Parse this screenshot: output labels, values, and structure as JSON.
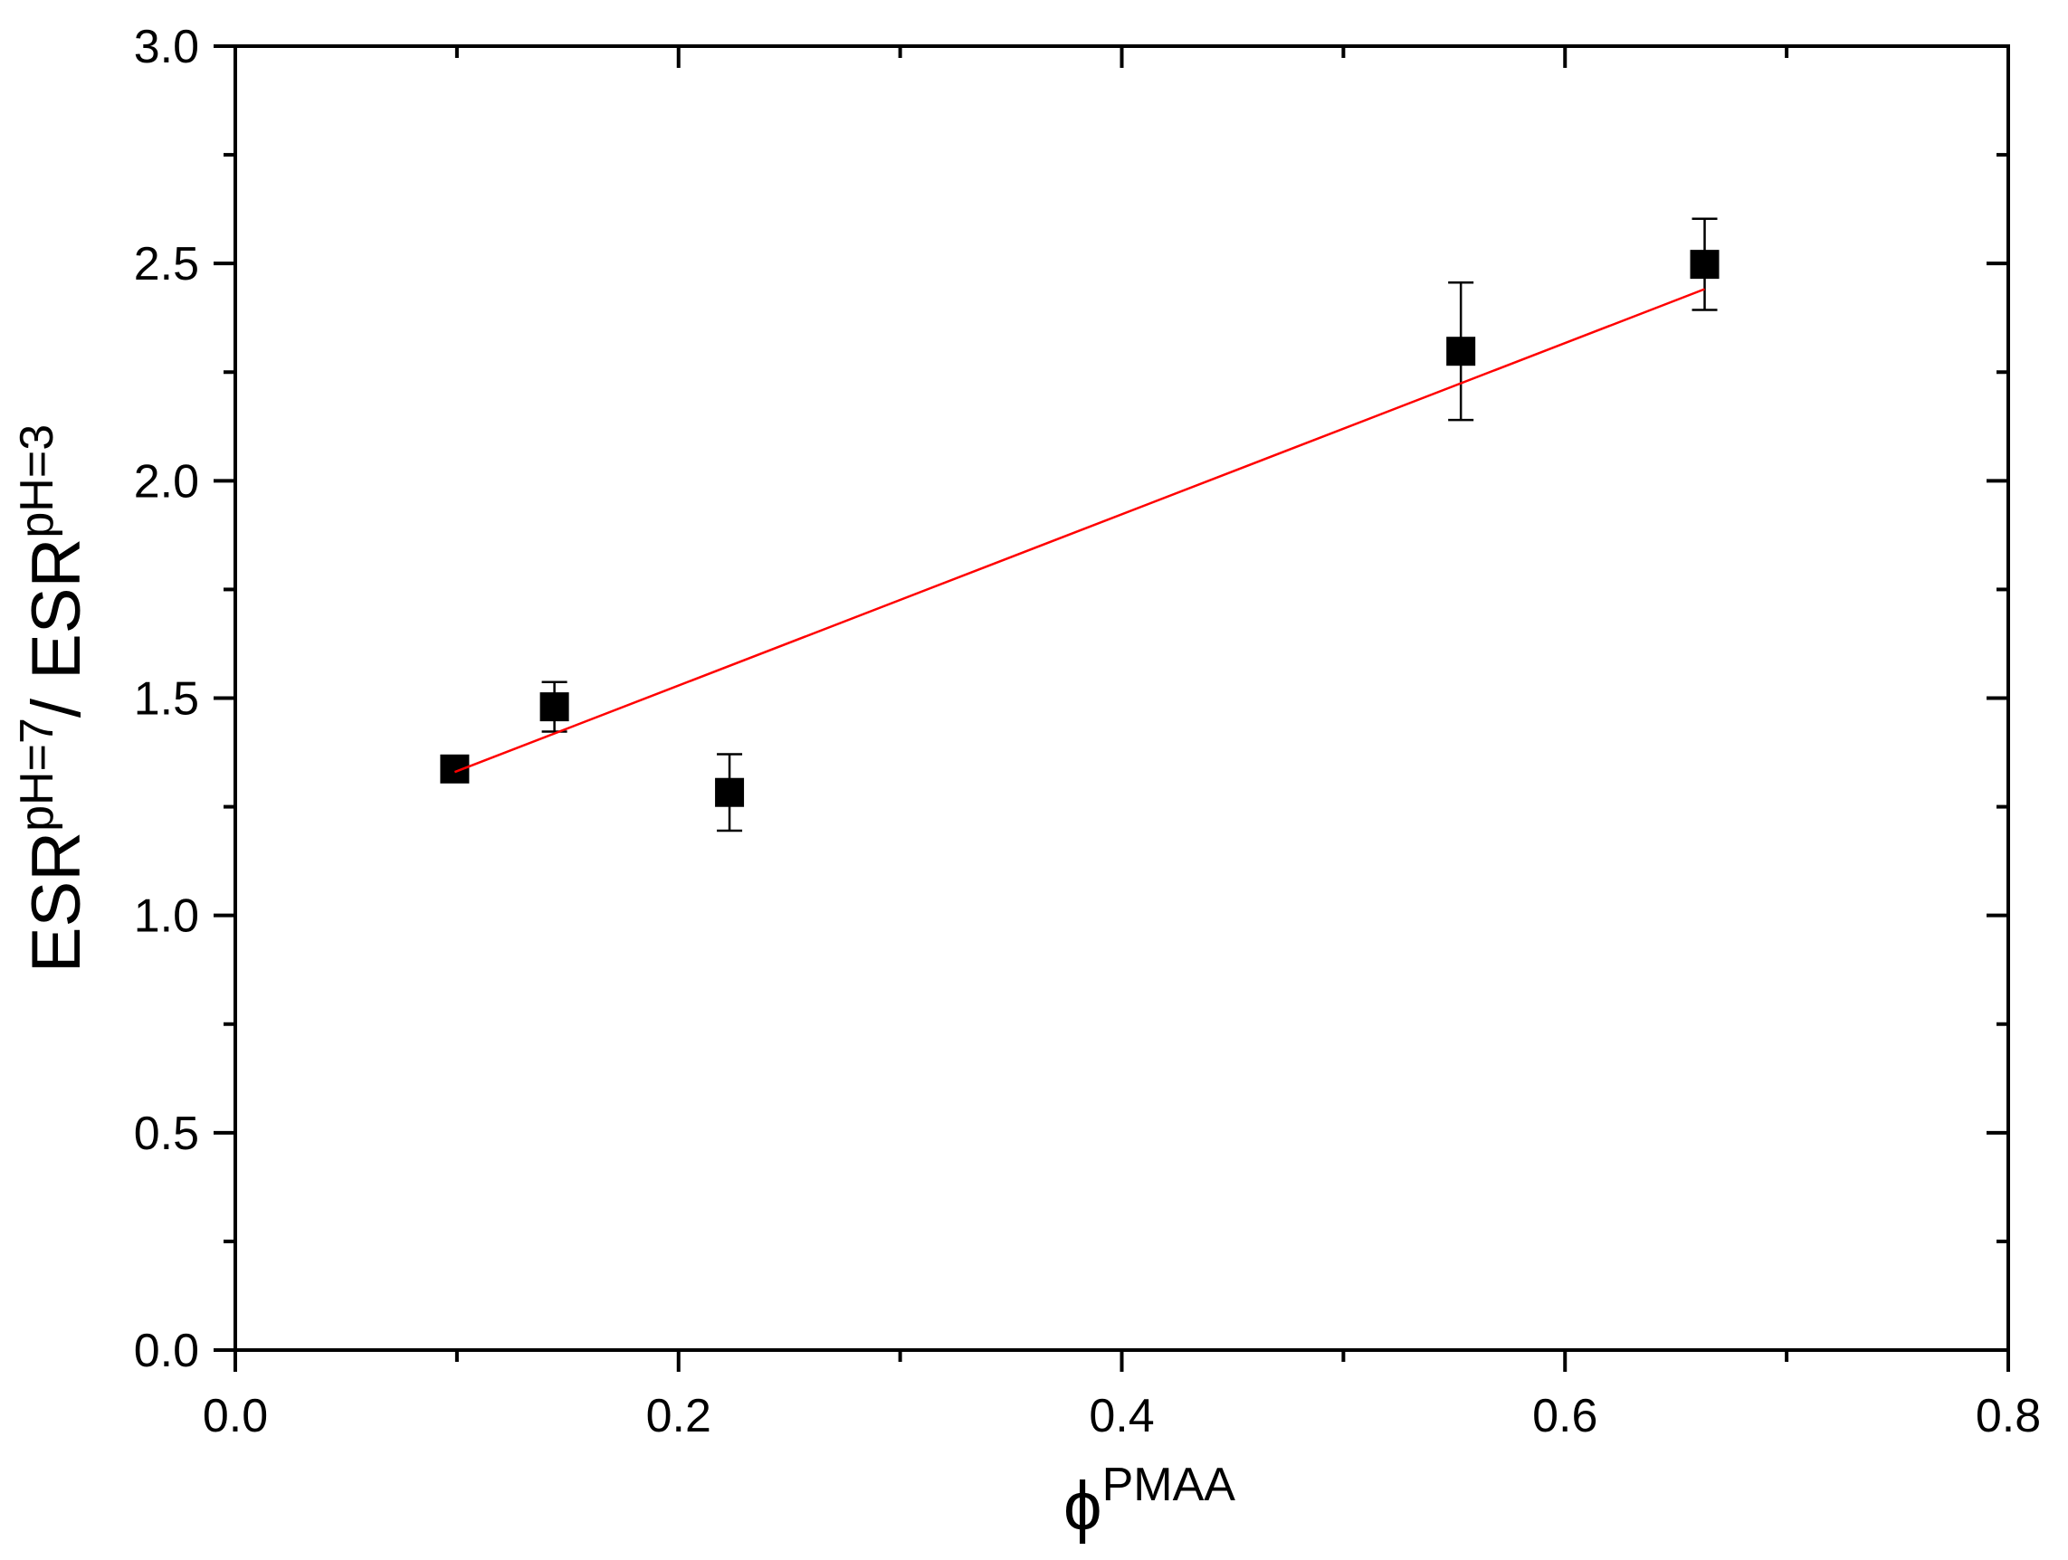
{
  "chart_data": {
    "type": "scatter",
    "x_label": {
      "text": "ϕ",
      "sup": "PMAA"
    },
    "y_label": {
      "text1": "ESR",
      "sup1": "pH=7",
      "text2": "/ ESR",
      "sup2": "pH=3"
    },
    "xlim": [
      0,
      0.8
    ],
    "ylim": [
      0,
      3
    ],
    "xticks": [
      {
        "value": 0,
        "label": "0.0"
      },
      0.2,
      0.4,
      0.6,
      0.8
    ],
    "yticks": [
      {
        "value": 0,
        "label": "0.0"
      },
      0.5,
      {
        "value": 1,
        "label": "1.0"
      },
      1.5,
      {
        "value": 2,
        "label": "2.0"
      },
      2.5,
      {
        "value": 3,
        "label": "3.0"
      }
    ],
    "xminorticks": [
      0.1,
      0.3,
      0.5,
      0.7
    ],
    "yminorticks": [
      0.25,
      0.75,
      1.25,
      1.75,
      2.25,
      2.75
    ],
    "series": [
      {
        "color": "#000000",
        "x": [
          0.099,
          0.144,
          0.223,
          0.553,
          0.663
        ],
        "values": [
          1.337,
          1.48,
          1.283,
          2.298,
          2.498
        ],
        "errors": [
          0.02,
          0.057,
          0.088,
          0.158,
          0.105
        ]
      },
      {
        "color": "#ff0000",
        "kind": "fit",
        "x": [
          0.099,
          0.663
        ],
        "values": [
          1.33,
          2.441
        ]
      }
    ]
  }
}
